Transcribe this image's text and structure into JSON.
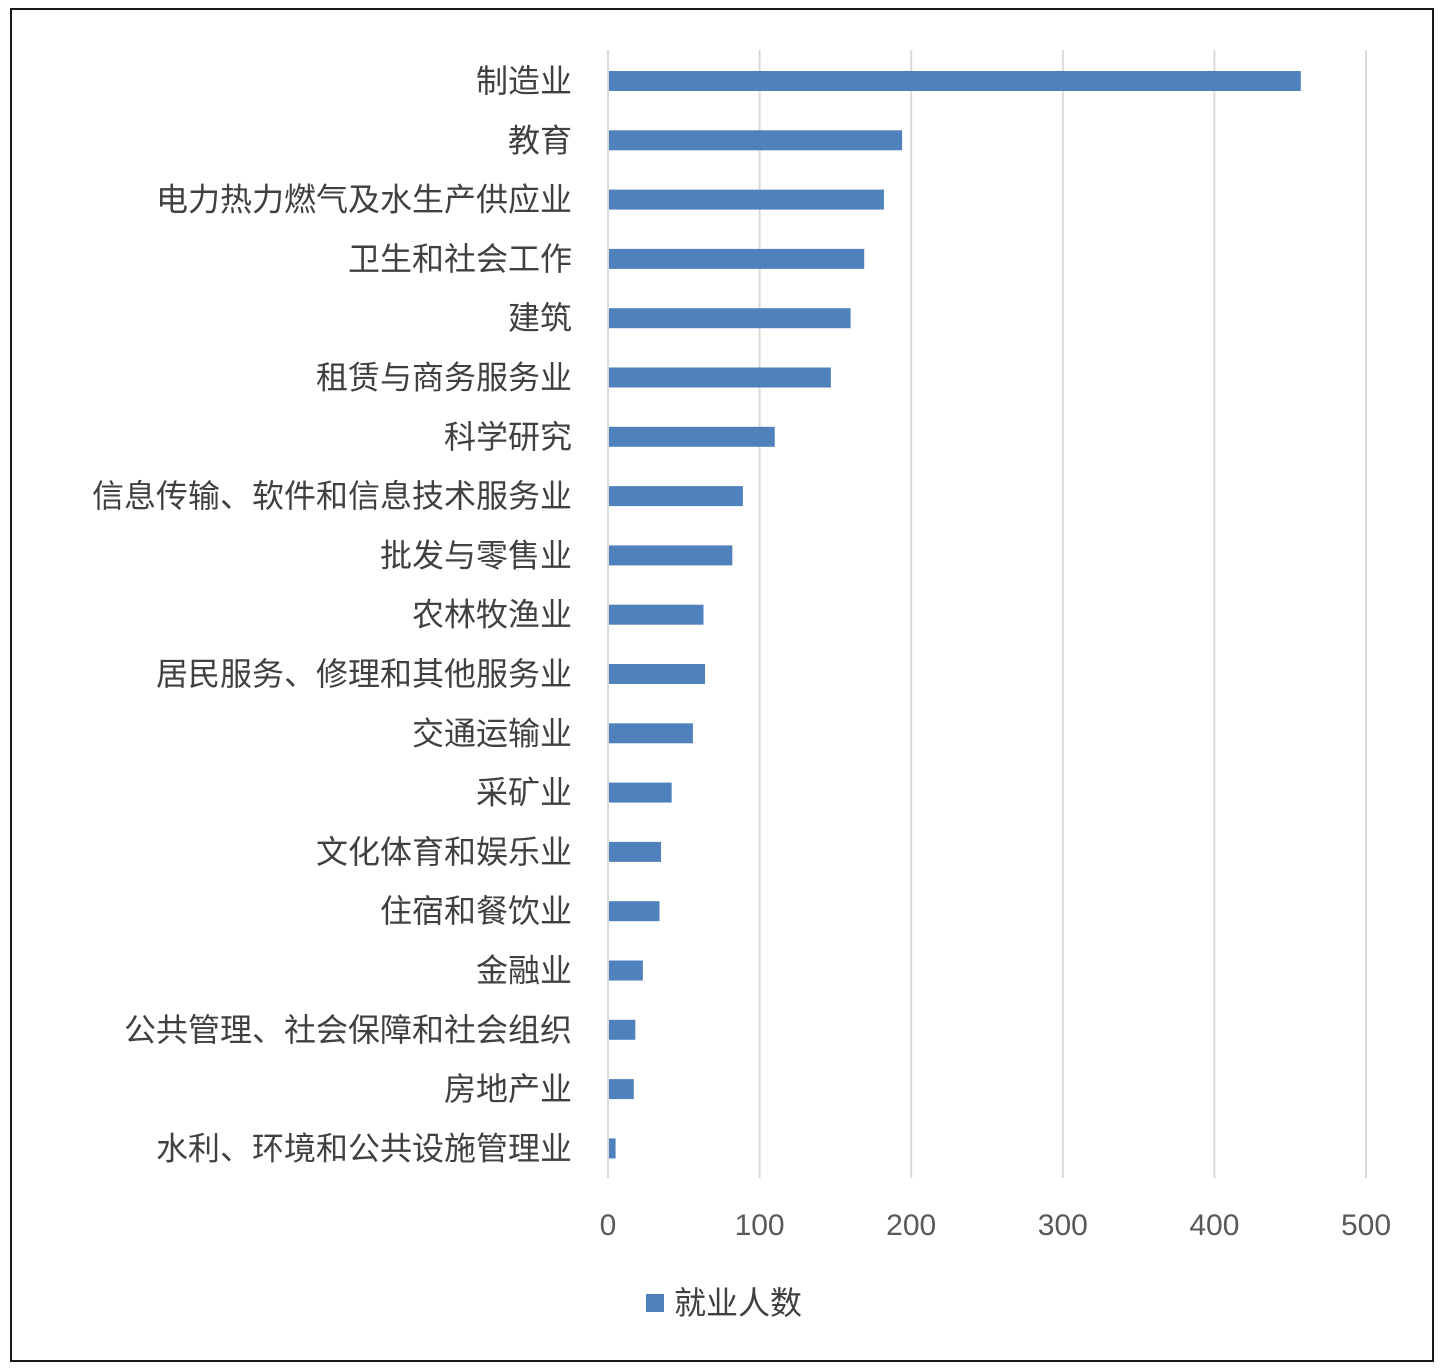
{
  "chart_data": {
    "type": "bar",
    "orientation": "horizontal",
    "categories": [
      "制造业",
      "教育",
      "电力热力燃气及水生产供应业",
      "卫生和社会工作",
      "建筑",
      "租赁与商务服务业",
      "科学研究",
      "信息传输、软件和信息技术服务业",
      "批发与零售业",
      "农林牧渔业",
      "居民服务、修理和其他服务业",
      "交通运输业",
      "采矿业",
      "文化体育和娱乐业",
      "住宿和餐饮业",
      "金融业",
      "公共管理、社会保障和社会组织",
      "房地产业",
      "水利、环境和公共设施管理业"
    ],
    "series": [
      {
        "name": "就业人数",
        "color": "#4f81bd",
        "values": [
          457,
          194,
          182,
          169,
          160,
          147,
          110,
          89,
          82,
          63,
          64,
          56,
          42,
          35,
          34,
          23,
          18,
          17,
          5
        ]
      }
    ],
    "xlim": [
      0,
      500
    ],
    "xticks": [
      "0",
      "100",
      "200",
      "300",
      "400",
      "500"
    ],
    "grid": true,
    "gridColor": "#d9d9d9",
    "legend": "bottom",
    "title": "",
    "xlabel": "",
    "ylabel": ""
  }
}
